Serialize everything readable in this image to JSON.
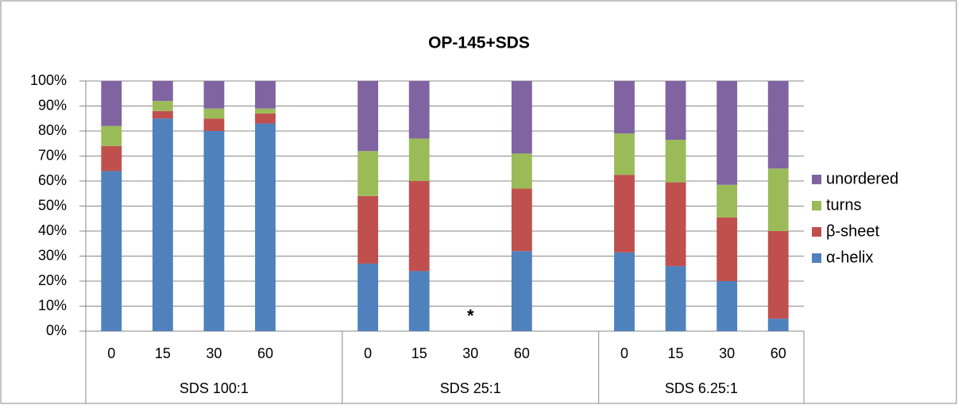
{
  "chart_data": {
    "type": "stacked_bar",
    "title": "OP-145+SDS",
    "categories": [
      "0",
      "15",
      "30",
      "60",
      null,
      "0",
      "15",
      "30",
      "60",
      null,
      "0",
      "15",
      "30",
      "60"
    ],
    "groups": [
      "SDS 100:1",
      "SDS 25:1",
      "SDS 6.25:1"
    ],
    "series": [
      {
        "name": "α-helix",
        "color": "#4f81bd",
        "values": [
          64,
          85,
          80,
          83,
          null,
          27,
          24,
          null,
          32,
          null,
          31.5,
          26,
          20,
          5
        ]
      },
      {
        "name": "β-sheet",
        "color": "#c0504d",
        "values": [
          10,
          3,
          5,
          4,
          null,
          27,
          36,
          null,
          25,
          null,
          31,
          33.5,
          25.5,
          35
        ]
      },
      {
        "name": "turns",
        "color": "#9bbb59",
        "values": [
          8,
          4,
          4,
          2,
          null,
          18,
          17,
          null,
          14,
          null,
          16.5,
          17,
          13,
          25
        ]
      },
      {
        "name": "unordered",
        "color": "#8064a2",
        "values": [
          18,
          8,
          11,
          11,
          null,
          28,
          23,
          null,
          29,
          null,
          21,
          23.5,
          41.5,
          35
        ]
      }
    ],
    "annotations": [
      {
        "text": "*",
        "category_index": 7
      }
    ],
    "ylim": [
      0,
      100
    ],
    "yticks": [
      {
        "value": 0,
        "label": "0%"
      },
      {
        "value": 10,
        "label": "10%"
      },
      {
        "value": 20,
        "label": "20%"
      },
      {
        "value": 30,
        "label": "30%"
      },
      {
        "value": 40,
        "label": "40%"
      },
      {
        "value": 50,
        "label": "50%"
      },
      {
        "value": 60,
        "label": "60%"
      },
      {
        "value": 70,
        "label": "70%"
      },
      {
        "value": 80,
        "label": "80%"
      },
      {
        "value": 90,
        "label": "90%"
      },
      {
        "value": 100,
        "label": "100%"
      }
    ],
    "grid": true,
    "legend": "right"
  }
}
